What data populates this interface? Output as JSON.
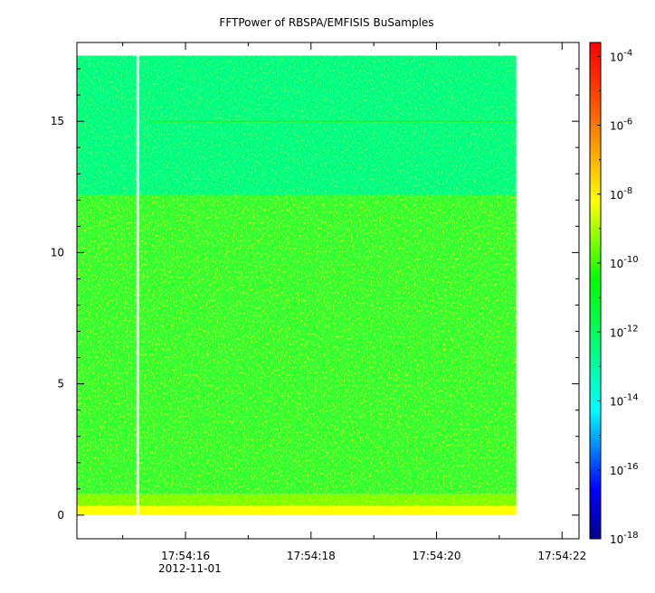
{
  "chart_data": {
    "type": "heatmap",
    "title": "FFTPower of RBSPA/EMFISIS  BuSamples",
    "x_axis": {
      "ticks": [
        {
          "value": 16,
          "label": "17:54:16"
        },
        {
          "value": 18,
          "label": "17:54:18"
        },
        {
          "value": 20,
          "label": "17:54:20"
        },
        {
          "value": 22,
          "label": "17:54:22"
        }
      ],
      "date_label": "2012-11-01",
      "range_seconds": [
        14.27,
        22.27
      ]
    },
    "y_axis": {
      "ticks": [
        {
          "value": 0,
          "label": "0"
        },
        {
          "value": 5,
          "label": "5"
        },
        {
          "value": 10,
          "label": "10"
        },
        {
          "value": 15,
          "label": "15"
        }
      ],
      "range": [
        -0.9,
        18.0
      ]
    },
    "colorbar": {
      "scale": "log",
      "range_exponent": [
        -18,
        -3.6
      ],
      "ticks": [
        {
          "exponent": -4,
          "base": "10",
          "sup": "-4"
        },
        {
          "exponent": -6,
          "base": "10",
          "sup": "-6"
        },
        {
          "exponent": -8,
          "base": "10",
          "sup": "-8"
        },
        {
          "exponent": -10,
          "base": "10",
          "sup": "-10"
        },
        {
          "exponent": -12,
          "base": "10",
          "sup": "-12"
        },
        {
          "exponent": -14,
          "base": "10",
          "sup": "-14"
        },
        {
          "exponent": -16,
          "base": "10",
          "sup": "-16"
        },
        {
          "exponent": -18,
          "base": "10",
          "sup": "-18"
        }
      ],
      "colors": [
        "#00008b",
        "#0000ff",
        "#0080ff",
        "#00ffff",
        "#00ff80",
        "#00ff00",
        "#80ff00",
        "#ffff00",
        "#ffa500",
        "#ff4000",
        "#ff0000"
      ]
    },
    "data": {
      "time_range_seconds": [
        14.27,
        21.27
      ],
      "freq_range": [
        0.0,
        17.5
      ],
      "gap_time_seconds": 15.24,
      "bands": [
        {
          "freq_range": [
            12.2,
            17.5
          ],
          "log_power": -12.5,
          "color": "#00ff80"
        },
        {
          "freq_range": [
            0.8,
            12.2
          ],
          "log_power": -10.5,
          "color": "#33ff33"
        },
        {
          "freq_range": [
            0.35,
            0.8
          ],
          "log_power": -9.5,
          "color": "#80ff00"
        },
        {
          "freq_range": [
            0.0,
            0.35
          ],
          "log_power": -8.5,
          "color": "#ffff00"
        }
      ],
      "line_feature": {
        "freq": 15.0,
        "color": "#22ee33"
      }
    },
    "grid": false
  }
}
